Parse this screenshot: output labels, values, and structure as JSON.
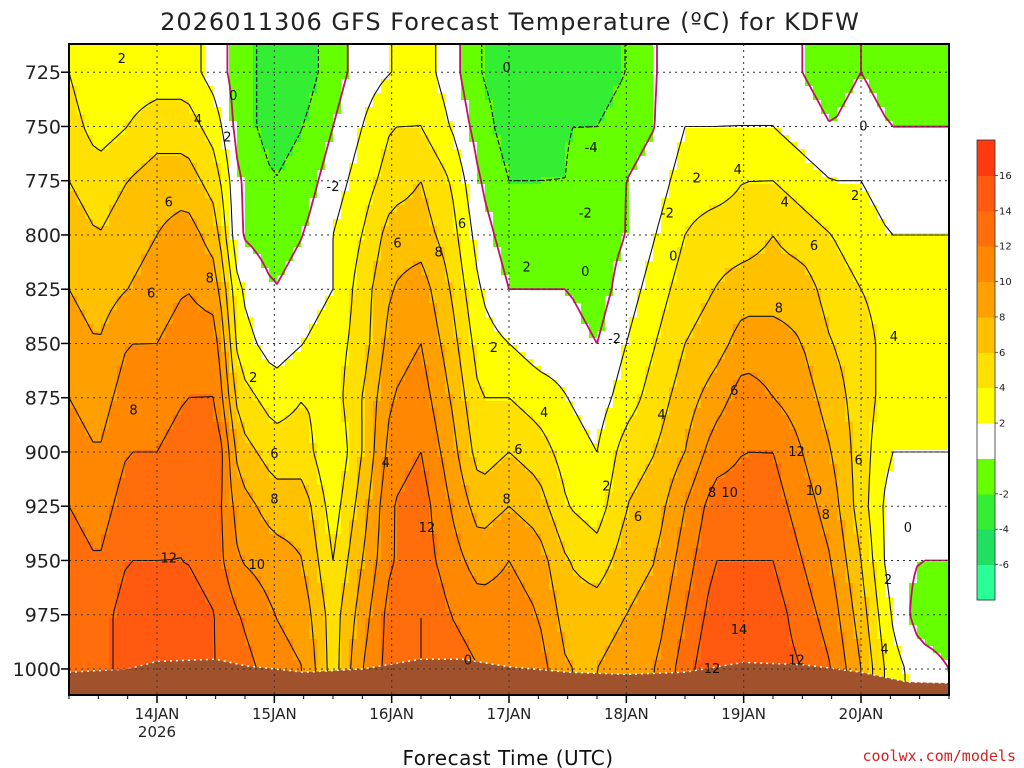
{
  "chart_data": {
    "type": "time-height contour (filled)",
    "title": "2026011306 GFS Forecast Temperature (ºC) for KDFW",
    "xlabel": "Forecast Time (UTC)",
    "ylabel": "Pressure (hPa)",
    "credit": "coolwx.com/models",
    "x_ticks": [
      {
        "label": "14JAN",
        "sub": "2026",
        "day": 14
      },
      {
        "label": "15JAN",
        "sub": "",
        "day": 15
      },
      {
        "label": "16JAN",
        "sub": "",
        "day": 16
      },
      {
        "label": "17JAN",
        "sub": "",
        "day": 17
      },
      {
        "label": "18JAN",
        "sub": "",
        "day": 18
      },
      {
        "label": "19JAN",
        "sub": "",
        "day": 19
      },
      {
        "label": "20JAN",
        "sub": "",
        "day": 20
      }
    ],
    "xlim_days": [
      13.25,
      20.75
    ],
    "y_ticks": [
      "725",
      "750",
      "775",
      "800",
      "825",
      "850",
      "875",
      "900",
      "925",
      "950",
      "975",
      "1000"
    ],
    "ylim_hpa": [
      712,
      1012
    ],
    "colorbar": {
      "levels": [
        -8,
        -6,
        -4,
        -2,
        0,
        2,
        4,
        6,
        8,
        10,
        12,
        14,
        16,
        18
      ],
      "tick_labels": [
        "-6",
        "-4",
        "-2",
        "2",
        "4",
        "6",
        "8",
        "10",
        "12",
        "14",
        "16"
      ],
      "colors": [
        "#29ff96",
        "#1fe060",
        "#33ee33",
        "#66ff00",
        "#ffffff",
        "#ffff00",
        "#ffe000",
        "#ffc000",
        "#ffa000",
        "#ff8800",
        "#ff6e0a",
        "#ff5a10",
        "#ff3a10"
      ]
    },
    "freezing_line_color": "#c0106c",
    "terrain_color": "#a0522d",
    "columns": [
      {
        "day": 13.25,
        "t": [
          4,
          5,
          6,
          7,
          8,
          9,
          10,
          11,
          12,
          13,
          13,
          13
        ]
      },
      {
        "day": 13.5,
        "t": [
          2,
          3,
          5,
          6,
          7,
          8,
          9,
          10,
          11,
          12,
          13,
          13
        ]
      },
      {
        "day": 13.75,
        "t": [
          3,
          4,
          6,
          7,
          8,
          10,
          11,
          12,
          13,
          14,
          15,
          15
        ]
      },
      {
        "day": 14.0,
        "t": [
          3,
          5,
          7,
          8,
          9,
          10,
          11,
          12,
          13,
          14,
          15,
          15
        ]
      },
      {
        "day": 14.25,
        "t": [
          3,
          5,
          7,
          9,
          10,
          11,
          12,
          13,
          14,
          14,
          15,
          15
        ]
      },
      {
        "day": 14.5,
        "t": [
          1,
          3,
          5,
          7,
          9,
          11,
          12,
          14,
          13,
          13,
          14,
          14
        ]
      },
      {
        "day": 14.7,
        "t": [
          -1,
          -1,
          0,
          0,
          2,
          3,
          5,
          7,
          9,
          10,
          12,
          13
        ]
      },
      {
        "day": 15.0,
        "t": [
          -3,
          -3,
          -2,
          -1,
          0,
          1,
          3,
          5,
          7,
          9,
          10,
          11
        ]
      },
      {
        "day": 15.25,
        "t": [
          -3,
          -2,
          -1,
          0,
          1,
          2,
          4,
          5,
          7,
          8,
          9,
          10
        ]
      },
      {
        "day": 15.5,
        "t": [
          -1,
          0,
          1,
          2,
          2,
          3,
          3,
          2,
          3,
          4,
          5,
          5
        ]
      },
      {
        "day": 15.75,
        "t": [
          1,
          2,
          3,
          4,
          5,
          5,
          6,
          6,
          7,
          8,
          9,
          10
        ]
      },
      {
        "day": 16.0,
        "t": [
          2,
          4,
          5,
          7,
          8,
          9,
          10,
          11,
          12,
          12,
          13,
          13
        ]
      },
      {
        "day": 16.25,
        "t": [
          3,
          4,
          6,
          7,
          9,
          10,
          11,
          12,
          13,
          13,
          14,
          14
        ]
      },
      {
        "day": 16.5,
        "t": [
          1,
          2,
          4,
          5,
          6,
          7,
          8,
          9,
          10,
          11,
          12,
          13
        ]
      },
      {
        "day": 16.75,
        "t": [
          -2,
          -1,
          0,
          1,
          2,
          3,
          4,
          5,
          7,
          9,
          11,
          12
        ]
      },
      {
        "day": 17.0,
        "t": [
          -3,
          -3,
          -2,
          -1,
          0,
          2,
          4,
          6,
          8,
          10,
          11,
          12
        ]
      },
      {
        "day": 17.25,
        "t": [
          -4,
          -3,
          -2,
          -1,
          0,
          1,
          3,
          5,
          7,
          9,
          10,
          11
        ]
      },
      {
        "day": 17.5,
        "t": [
          -3,
          -2,
          -2,
          -1,
          0,
          1,
          2,
          3,
          4,
          6,
          7,
          8
        ]
      },
      {
        "day": 17.75,
        "t": [
          -3,
          -2,
          -1,
          -1,
          -1,
          0,
          1,
          2,
          3,
          5,
          7,
          8
        ]
      },
      {
        "day": 18.0,
        "t": [
          -2,
          -1,
          0,
          0,
          1,
          2,
          3,
          5,
          6,
          7,
          8,
          9
        ]
      },
      {
        "day": 18.25,
        "t": [
          0,
          0,
          1,
          2,
          3,
          4,
          5,
          6,
          7,
          8,
          9,
          10
        ]
      },
      {
        "day": 18.5,
        "t": [
          1,
          2,
          3,
          4,
          5,
          6,
          7,
          8,
          10,
          11,
          12,
          13
        ]
      },
      {
        "day": 18.75,
        "t": [
          1,
          2,
          3,
          5,
          6,
          7,
          9,
          11,
          13,
          14,
          15,
          16
        ]
      },
      {
        "day": 19.0,
        "t": [
          1,
          2,
          4,
          5,
          7,
          9,
          11,
          12,
          13,
          14,
          15,
          16
        ]
      },
      {
        "day": 19.25,
        "t": [
          1,
          2,
          4,
          6,
          7,
          9,
          10,
          12,
          13,
          14,
          15,
          15
        ]
      },
      {
        "day": 19.5,
        "t": [
          0,
          1,
          3,
          5,
          7,
          8,
          9,
          10,
          11,
          12,
          13,
          14
        ]
      },
      {
        "day": 19.75,
        "t": [
          -1,
          0,
          2,
          4,
          5,
          6,
          7,
          8,
          9,
          10,
          11,
          12
        ]
      },
      {
        "day": 20.0,
        "t": [
          0,
          1,
          2,
          3,
          4,
          5,
          5,
          5,
          5,
          6,
          7,
          8
        ]
      },
      {
        "day": 20.25,
        "t": [
          -1,
          0,
          1,
          2,
          3,
          3,
          3,
          2,
          1,
          1,
          2,
          3
        ]
      },
      {
        "day": 20.5,
        "t": [
          -1,
          0,
          1,
          2,
          3,
          3,
          3,
          2,
          1,
          0,
          -1,
          1
        ]
      },
      {
        "day": 20.75,
        "t": [
          -1,
          0,
          1,
          2,
          3,
          3,
          3,
          2,
          1,
          0,
          -1,
          0
        ]
      }
    ],
    "contour_labels": [
      {
        "text": "2",
        "day": 13.7,
        "hpa": 719
      },
      {
        "text": "0",
        "day": 14.65,
        "hpa": 736
      },
      {
        "text": "4",
        "day": 14.35,
        "hpa": 747
      },
      {
        "text": "2",
        "day": 14.6,
        "hpa": 755
      },
      {
        "text": "6",
        "day": 14.1,
        "hpa": 785
      },
      {
        "text": "8",
        "day": 14.45,
        "hpa": 820
      },
      {
        "text": "6",
        "day": 13.95,
        "hpa": 827
      },
      {
        "text": "8",
        "day": 13.8,
        "hpa": 881
      },
      {
        "text": "2",
        "day": 14.82,
        "hpa": 866
      },
      {
        "text": "6",
        "day": 15.0,
        "hpa": 901
      },
      {
        "text": "8",
        "day": 15.0,
        "hpa": 922
      },
      {
        "text": "10",
        "day": 14.85,
        "hpa": 952
      },
      {
        "text": "12",
        "day": 14.1,
        "hpa": 949
      },
      {
        "text": "-2",
        "day": 15.5,
        "hpa": 778
      },
      {
        "text": "6",
        "day": 16.05,
        "hpa": 804
      },
      {
        "text": "8",
        "day": 16.4,
        "hpa": 808
      },
      {
        "text": "6",
        "day": 16.6,
        "hpa": 795
      },
      {
        "text": "4",
        "day": 15.95,
        "hpa": 905
      },
      {
        "text": "12",
        "day": 16.3,
        "hpa": 935
      },
      {
        "text": "0",
        "day": 16.65,
        "hpa": 996
      },
      {
        "text": "0",
        "day": 16.98,
        "hpa": 723
      },
      {
        "text": "-4",
        "day": 17.7,
        "hpa": 760
      },
      {
        "text": "-2",
        "day": 17.65,
        "hpa": 790
      },
      {
        "text": "-2",
        "day": 18.35,
        "hpa": 790
      },
      {
        "text": "2",
        "day": 17.15,
        "hpa": 815
      },
      {
        "text": "0",
        "day": 17.65,
        "hpa": 817
      },
      {
        "text": "0",
        "day": 18.4,
        "hpa": 810
      },
      {
        "text": "2",
        "day": 16.87,
        "hpa": 852
      },
      {
        "text": "-2",
        "day": 17.9,
        "hpa": 848
      },
      {
        "text": "4",
        "day": 17.3,
        "hpa": 882
      },
      {
        "text": "6",
        "day": 17.08,
        "hpa": 899
      },
      {
        "text": "8",
        "day": 16.98,
        "hpa": 922
      },
      {
        "text": "2",
        "day": 17.83,
        "hpa": 916
      },
      {
        "text": "4",
        "day": 18.3,
        "hpa": 883
      },
      {
        "text": "6",
        "day": 18.1,
        "hpa": 930
      },
      {
        "text": "2",
        "day": 18.6,
        "hpa": 774
      },
      {
        "text": "4",
        "day": 18.95,
        "hpa": 770
      },
      {
        "text": "4",
        "day": 19.35,
        "hpa": 785
      },
      {
        "text": "6",
        "day": 19.6,
        "hpa": 805
      },
      {
        "text": "8",
        "day": 19.3,
        "hpa": 834
      },
      {
        "text": "6",
        "day": 18.92,
        "hpa": 872
      },
      {
        "text": "8",
        "day": 18.73,
        "hpa": 919
      },
      {
        "text": "10",
        "day": 18.88,
        "hpa": 919
      },
      {
        "text": "12",
        "day": 19.45,
        "hpa": 900
      },
      {
        "text": "10",
        "day": 19.6,
        "hpa": 918
      },
      {
        "text": "8",
        "day": 19.7,
        "hpa": 929
      },
      {
        "text": "6",
        "day": 19.98,
        "hpa": 904
      },
      {
        "text": "14",
        "day": 18.96,
        "hpa": 982
      },
      {
        "text": "12",
        "day": 18.73,
        "hpa": 1000
      },
      {
        "text": "12",
        "day": 19.45,
        "hpa": 996
      },
      {
        "text": "0",
        "day": 20.02,
        "hpa": 750
      },
      {
        "text": "2",
        "day": 19.95,
        "hpa": 782
      },
      {
        "text": "4",
        "day": 20.28,
        "hpa": 847
      },
      {
        "text": "0",
        "day": 20.4,
        "hpa": 935
      },
      {
        "text": "2",
        "day": 20.23,
        "hpa": 959
      },
      {
        "text": "4",
        "day": 20.2,
        "hpa": 991
      }
    ],
    "surface_pressure": [
      {
        "day": 13.25,
        "hpa": 1001.5
      },
      {
        "day": 13.75,
        "hpa": 1000
      },
      {
        "day": 14.0,
        "hpa": 996.5
      },
      {
        "day": 14.5,
        "hpa": 995.5
      },
      {
        "day": 14.75,
        "hpa": 998.5
      },
      {
        "day": 15.25,
        "hpa": 1001.5
      },
      {
        "day": 15.75,
        "hpa": 1000
      },
      {
        "day": 16.25,
        "hpa": 995.5
      },
      {
        "day": 16.6,
        "hpa": 995.5
      },
      {
        "day": 17.0,
        "hpa": 999
      },
      {
        "day": 17.5,
        "hpa": 1001.5
      },
      {
        "day": 18.0,
        "hpa": 1002.5
      },
      {
        "day": 18.5,
        "hpa": 1001.5
      },
      {
        "day": 19.0,
        "hpa": 997
      },
      {
        "day": 19.5,
        "hpa": 998
      },
      {
        "day": 20.0,
        "hpa": 1001.5
      },
      {
        "day": 20.4,
        "hpa": 1006
      },
      {
        "day": 20.75,
        "hpa": 1006.5
      }
    ]
  }
}
